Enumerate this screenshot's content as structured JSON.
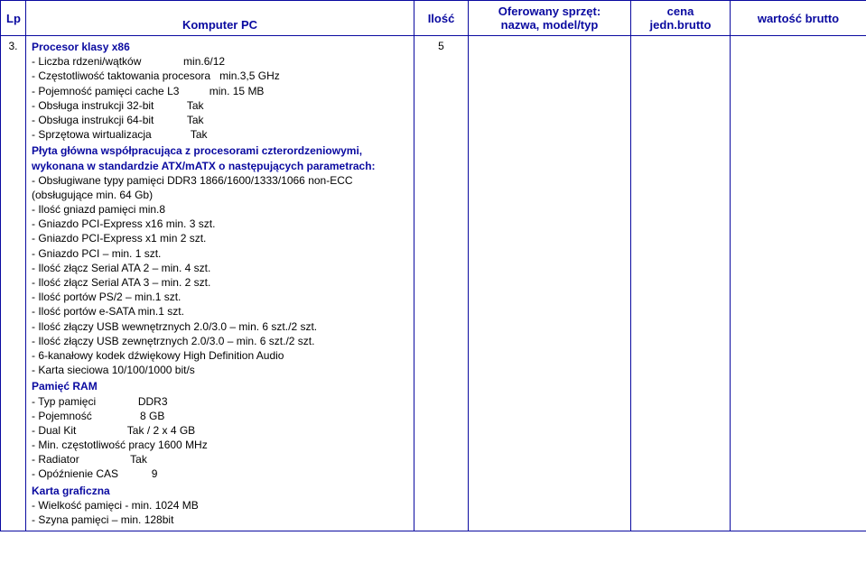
{
  "headers": {
    "lp": "Lp",
    "desc": "Komputer PC",
    "qty": "Ilość",
    "offered": "Oferowany sprzęt:\nnazwa, model/typ",
    "unitprice": "cena\njedn.brutto",
    "totalprice": "wartość brutto"
  },
  "row_lp": "3.",
  "qty": "5",
  "sections": {
    "cpu_title": "Procesor klasy x86",
    "cpu_lines": [
      "- Liczba rdzeni/wątków              min.6/12",
      "- Częstotliwość taktowania procesora   min.3,5 GHz",
      "- Pojemność pamięci cache L3          min. 15 MB",
      "- Obsługa instrukcji 32-bit           Tak",
      "- Obsługa instrukcji 64-bit           Tak",
      "- Sprzętowa wirtualizacja             Tak"
    ],
    "mb_title": "Płyta główna współpracująca z procesorami czterordzeniowymi, wykonana w standardzie ATX/mATX o następujących parametrach:",
    "mb_lines": [
      "- Obsługiwane typy pamięci DDR3 1866/1600/1333/1066 non-ECC (obsługujące min. 64 Gb)",
      "- Ilość gniazd pamięci min.8",
      "- Gniazdo PCI-Express x16 min. 3 szt.",
      "- Gniazdo PCI-Express x1 min 2 szt.",
      "- Gniazdo PCI – min. 1 szt.",
      "- Ilość złącz Serial ATA 2 – min. 4 szt.",
      "- Ilość złącz Serial ATA 3 – min. 2 szt.",
      "- Ilość portów PS/2 – min.1 szt.",
      "- Ilość portów e-SATA min.1 szt.",
      "- Ilość złączy USB wewnętrznych 2.0/3.0 – min. 6 szt./2 szt.",
      "- Ilość złączy USB zewnętrznych 2.0/3.0 – min. 6 szt./2 szt.",
      "- 6-kanałowy kodek dźwiękowy High Definition Audio",
      "- Karta sieciowa 10/100/1000 bit/s"
    ],
    "ram_title": "Pamięć RAM",
    "ram_lines": [
      "- Typ pamięci              DDR3",
      "- Pojemność                8 GB",
      "- Dual Kit                 Tak / 2 x 4 GB",
      "- Min. częstotliwość pracy 1600 MHz",
      "- Radiator                 Tak",
      "- Opóźnienie CAS           9"
    ],
    "gpu_title": "Karta graficzna",
    "gpu_lines": [
      "- Wielkość pamięci  - min. 1024 MB",
      "- Szyna pamięci – min. 128bit"
    ]
  },
  "col_widths": {
    "lp": "28px",
    "desc": "430px",
    "qty": "60px",
    "offered": "180px",
    "unitprice": "110px",
    "totalprice": "151px"
  }
}
